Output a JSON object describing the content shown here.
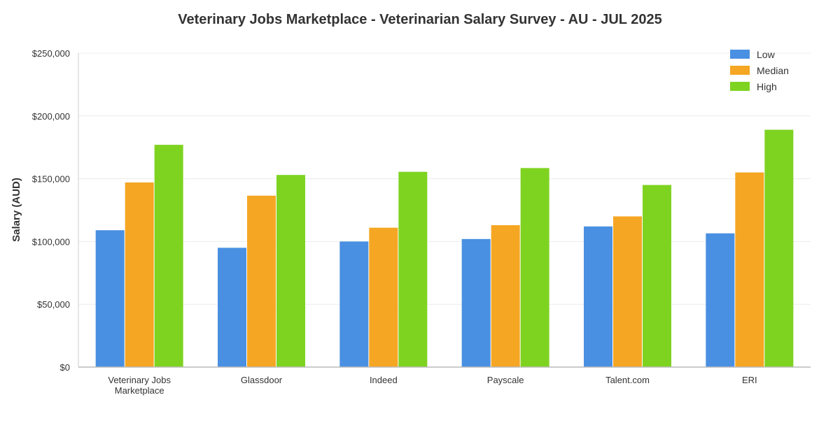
{
  "chart_data": {
    "type": "bar",
    "title": "Veterinary Jobs Marketplace - Veterinarian Salary Survey - AU - JUL 2025",
    "xlabel": "",
    "ylabel": "Salary (AUD)",
    "ylim": [
      0,
      250000
    ],
    "yticks": [
      0,
      50000,
      100000,
      150000,
      200000,
      250000
    ],
    "ytick_labels": [
      "$0",
      "$50,000",
      "$100,000",
      "$150,000",
      "$200,000",
      "$250,000"
    ],
    "grid": true,
    "legend_position": "top-right",
    "categories": [
      [
        "Veterinary Jobs",
        "Marketplace"
      ],
      [
        "Glassdoor"
      ],
      [
        "Indeed"
      ],
      [
        "Payscale"
      ],
      [
        "Talent.com"
      ],
      [
        "ERI"
      ]
    ],
    "series": [
      {
        "name": "Low",
        "color": "#4a90e2",
        "values": [
          109000,
          95000,
          100000,
          102000,
          112000,
          106500
        ]
      },
      {
        "name": "Median",
        "color": "#f5a623",
        "values": [
          147000,
          136500,
          111000,
          113000,
          120000,
          155000
        ]
      },
      {
        "name": "High",
        "color": "#7ed321",
        "values": [
          177000,
          153000,
          155500,
          158500,
          145000,
          189000
        ]
      }
    ]
  }
}
